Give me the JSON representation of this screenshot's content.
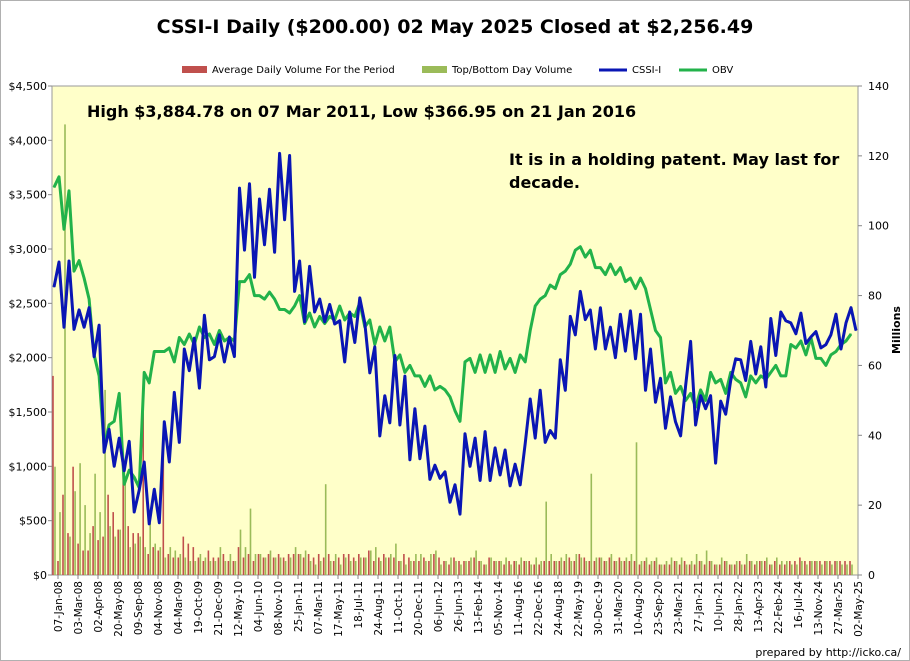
{
  "chart_data": {
    "type": "combo",
    "title": "CSSI-I Daily ($200.00) 02 May 2025 Closed at $2,256.49",
    "legend": {
      "placement": "top",
      "entries": [
        {
          "label": "Average Daily Volume For the Period",
          "kind": "bar",
          "color": "#c0504d"
        },
        {
          "label": "Top/Bottom Day Volume",
          "kind": "bar",
          "color": "#9bbb59"
        },
        {
          "label": "CSSI-I",
          "kind": "line",
          "color": "#0a16b4"
        },
        {
          "label": "OBV",
          "kind": "line",
          "color": "#22b24a"
        }
      ]
    },
    "annotations": {
      "high_low": "High $3,884.78 on 07 Mar 2011, Low $366.95 on 21 Jan 2016",
      "comment": "It is in a holding patent. May last for decade."
    },
    "y_left": {
      "range": [
        0,
        4500
      ],
      "ticks": [
        "$4,500",
        "$4,000",
        "$3,500",
        "$3,000",
        "$2,500",
        "$2,000",
        "$1,500",
        "$1,000",
        "$500",
        "$0"
      ]
    },
    "y_right": {
      "label": "Millions",
      "range": [
        0,
        140
      ],
      "ticks": [
        "140",
        "120",
        "100",
        "80",
        "60",
        "40",
        "20",
        "0"
      ]
    },
    "x_tick_labels": [
      "07-Jan-08",
      "03-Mar-08",
      "02-Apr-08",
      "20-May-08",
      "09-Sep-08",
      "04-Nov-08",
      "04-Mar-09",
      "19-Oct-09",
      "21-Dec-09",
      "12-May-10",
      "04-Jun-10",
      "08-Nov-10",
      "25-Jan-11",
      "07-Mar-11",
      "17-May-11",
      "18-Jul-11",
      "24-Aug-11",
      "11-Oct-11",
      "20-Dec-11",
      "06-Jun-12",
      "26-Jun-13",
      "13-Feb-14",
      "05-Nov-14",
      "11-Aug-16",
      "22-Dec-16",
      "24-Aug-18",
      "22-May-19",
      "30-Dec-19",
      "31-Mar-20",
      "10-Aug-20",
      "23-Sep-20",
      "23-Mar-21",
      "27-Jan-21",
      "10-Jun-21",
      "28-Jan-22",
      "13-Apr-23",
      "22-Feb-24",
      "16-Jul-24",
      "13-Nov-24",
      "27-Mar-25",
      "02-May-25"
    ],
    "grid": false,
    "series": [
      {
        "name": "CSSI-I",
        "axis": "left",
        "values": [
          2650,
          2880,
          2280,
          2890,
          2260,
          2440,
          2280,
          2460,
          2010,
          2300,
          1130,
          1340,
          1000,
          1260,
          960,
          1230,
          580,
          780,
          1040,
          470,
          790,
          480,
          1410,
          1040,
          1680,
          1220,
          2080,
          1880,
          2180,
          1720,
          2390,
          1980,
          2010,
          2210,
          1960,
          2190,
          2010,
          3560,
          2990,
          3600,
          2740,
          3460,
          3040,
          3550,
          2970,
          3880,
          3270,
          3860,
          2610,
          2890,
          2330,
          2840,
          2420,
          2540,
          2330,
          2490,
          2310,
          2340,
          1960,
          2420,
          2140,
          2550,
          2320,
          1860,
          2100,
          1280,
          1650,
          1400,
          2020,
          1380,
          1830,
          1060,
          1530,
          1070,
          1370,
          880,
          1010,
          890,
          950,
          670,
          830,
          560,
          1300,
          1000,
          1260,
          870,
          1320,
          870,
          1170,
          920,
          1150,
          820,
          1020,
          830,
          1210,
          1620,
          1260,
          1700,
          1220,
          1330,
          1260,
          1980,
          1700,
          2380,
          2210,
          2610,
          2350,
          2440,
          2080,
          2460,
          2080,
          2280,
          2000,
          2400,
          2060,
          2430,
          1990,
          2400,
          1700,
          2080,
          1590,
          1810,
          1350,
          1640,
          1410,
          1280,
          1740,
          2150,
          1380,
          1650,
          1530,
          1650,
          1030,
          1600,
          1480,
          1790,
          1990,
          1980,
          1790,
          2150,
          1850,
          2100,
          1730,
          2360,
          2020,
          2420,
          2340,
          2320,
          2220,
          2410,
          2130,
          2190,
          2240,
          2090,
          2120,
          2210,
          2400,
          2080,
          2320,
          2460,
          2250
        ]
      },
      {
        "name": "OBV",
        "axis": "right",
        "values": [
          111,
          114,
          99,
          110,
          87,
          90,
          85,
          79,
          63,
          57,
          37,
          43,
          44,
          52,
          26,
          30,
          28,
          25,
          58,
          55,
          64,
          64,
          64,
          65,
          61,
          68,
          66,
          69,
          66,
          71,
          68,
          69,
          66,
          70,
          67,
          68,
          67,
          84,
          84,
          86,
          80,
          80,
          79,
          81,
          79,
          76,
          76,
          75,
          77,
          80,
          72,
          75,
          71,
          74,
          72,
          74,
          73,
          77,
          73,
          75,
          74,
          78,
          71,
          73,
          66,
          71,
          67,
          71,
          61,
          63,
          58,
          60,
          57,
          57,
          54,
          57,
          53,
          54,
          53,
          51,
          47,
          44,
          61,
          62,
          58,
          63,
          58,
          63,
          58,
          64,
          59,
          62,
          58,
          63,
          61,
          70,
          77,
          79,
          80,
          83,
          82,
          86,
          87,
          89,
          93,
          94,
          91,
          93,
          88,
          88,
          86,
          89,
          86,
          88,
          84,
          85,
          82,
          85,
          82,
          76,
          70,
          68,
          55,
          58,
          52,
          54,
          50,
          52,
          48,
          53,
          50,
          58,
          55,
          56,
          52,
          58,
          56,
          55,
          51,
          57,
          55,
          57,
          56,
          58,
          60,
          57,
          57,
          66,
          65,
          67,
          63,
          68,
          62,
          62,
          60,
          63,
          64,
          66,
          67,
          69
        ]
      },
      {
        "name": "Average Daily Volume For the Period",
        "axis": "right",
        "values": [
          57,
          4,
          23,
          12,
          31,
          9,
          7,
          7,
          14,
          10,
          11,
          23,
          18,
          13,
          35,
          14,
          12,
          12,
          50,
          6,
          8,
          7,
          38,
          6,
          5,
          5,
          11,
          9,
          8,
          5,
          4,
          7,
          5,
          5,
          6,
          4,
          4,
          8,
          5,
          6,
          4,
          6,
          5,
          6,
          5,
          6,
          5,
          6,
          6,
          6,
          5,
          6,
          5,
          6,
          5,
          6,
          4,
          5,
          6,
          6,
          5,
          6,
          5,
          7,
          4,
          5,
          6,
          5,
          5,
          4,
          6,
          5,
          4,
          4,
          5,
          4,
          6,
          5,
          4,
          3,
          5,
          4,
          4,
          4,
          5,
          4,
          3,
          5,
          4,
          4,
          3,
          4,
          4,
          3,
          4,
          4,
          3,
          3,
          4,
          4,
          4,
          4,
          4,
          5,
          4,
          6,
          5,
          4,
          4,
          5,
          4,
          5,
          4,
          5,
          4,
          4,
          4,
          3,
          4,
          3,
          4,
          3,
          3,
          3,
          4,
          3,
          4,
          3,
          3,
          4,
          3,
          4,
          3,
          3,
          4,
          3,
          3,
          4,
          3,
          4,
          3,
          4,
          4,
          3,
          4,
          3,
          3,
          4,
          4,
          5,
          4,
          4,
          4,
          4,
          4,
          4,
          4,
          4,
          4,
          4
        ]
      },
      {
        "name": "Top/Bottom Day Volume",
        "axis": "right",
        "values": [
          31,
          18,
          129,
          11,
          24,
          32,
          20,
          12,
          29,
          18,
          53,
          14,
          11,
          13,
          28,
          8,
          9,
          11,
          8,
          15,
          9,
          8,
          5,
          8,
          7,
          6,
          5,
          4,
          4,
          6,
          5,
          4,
          4,
          8,
          4,
          6,
          4,
          13,
          8,
          19,
          6,
          6,
          5,
          7,
          5,
          5,
          4,
          5,
          8,
          6,
          7,
          4,
          3,
          4,
          26,
          4,
          6,
          3,
          5,
          4,
          4,
          5,
          5,
          7,
          8,
          4,
          5,
          6,
          9,
          4,
          3,
          4,
          6,
          6,
          4,
          6,
          7,
          3,
          4,
          5,
          4,
          3,
          4,
          5,
          7,
          4,
          3,
          5,
          4,
          4,
          5,
          3,
          4,
          5,
          4,
          3,
          5,
          4,
          21,
          6,
          4,
          5,
          6,
          4,
          6,
          5,
          4,
          29,
          5,
          5,
          4,
          6,
          4,
          4,
          5,
          6,
          38,
          4,
          5,
          4,
          5,
          3,
          4,
          5,
          4,
          5,
          3,
          4,
          6,
          4,
          7,
          4,
          3,
          5,
          4,
          3,
          4,
          3,
          6,
          4,
          4,
          4,
          5,
          3,
          5,
          4,
          4,
          3,
          3,
          4,
          3,
          4,
          4,
          3,
          4,
          3,
          4,
          3,
          3,
          3
        ]
      }
    ]
  },
  "footer": {
    "credit": "prepared by http://icko.ca/"
  }
}
